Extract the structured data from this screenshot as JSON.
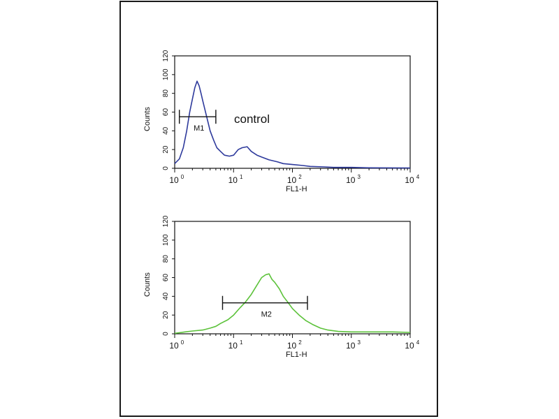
{
  "chart_data": [
    {
      "type": "line",
      "xlabel": "FL1-H",
      "ylabel": "Counts",
      "x_scale": "log",
      "xlim": [
        1,
        10000
      ],
      "ylim": [
        0,
        120
      ],
      "yticks": [
        "0",
        "20",
        "40",
        "60",
        "80",
        "100",
        "120"
      ],
      "xticks": [
        {
          "base": "10",
          "exp": "0"
        },
        {
          "base": "10",
          "exp": "1"
        },
        {
          "base": "10",
          "exp": "2"
        },
        {
          "base": "10",
          "exp": "3"
        },
        {
          "base": "10",
          "exp": "4"
        }
      ],
      "annotation": "control",
      "marker": {
        "label": "M1",
        "x_start": 1.2,
        "x_end": 5.0,
        "y": 55
      },
      "series": [
        {
          "color": "#2e3a9c",
          "points": [
            [
              1.0,
              5
            ],
            [
              1.2,
              10
            ],
            [
              1.4,
              22
            ],
            [
              1.6,
              40
            ],
            [
              1.8,
              60
            ],
            [
              2.0,
              74
            ],
            [
              2.2,
              86
            ],
            [
              2.4,
              93
            ],
            [
              2.6,
              88
            ],
            [
              2.8,
              80
            ],
            [
              3.0,
              72
            ],
            [
              3.4,
              58
            ],
            [
              4.0,
              40
            ],
            [
              4.6,
              30
            ],
            [
              5.2,
              22
            ],
            [
              6.0,
              18
            ],
            [
              7.0,
              14
            ],
            [
              8.5,
              13
            ],
            [
              10,
              14
            ],
            [
              12,
              20
            ],
            [
              14,
              22
            ],
            [
              17,
              23
            ],
            [
              20,
              18
            ],
            [
              25,
              14
            ],
            [
              30,
              12
            ],
            [
              40,
              9
            ],
            [
              55,
              7
            ],
            [
              70,
              5
            ],
            [
              100,
              4
            ],
            [
              150,
              3
            ],
            [
              200,
              2
            ],
            [
              350,
              1.5
            ],
            [
              500,
              1
            ],
            [
              1000,
              1
            ],
            [
              2000,
              0.5
            ],
            [
              10000,
              0.3
            ]
          ]
        }
      ]
    },
    {
      "type": "line",
      "xlabel": "FL1-H",
      "ylabel": "Counts",
      "x_scale": "log",
      "xlim": [
        1,
        10000
      ],
      "ylim": [
        0,
        120
      ],
      "yticks": [
        "0",
        "20",
        "40",
        "60",
        "80",
        "100",
        "120"
      ],
      "xticks": [
        {
          "base": "10",
          "exp": "0"
        },
        {
          "base": "10",
          "exp": "1"
        },
        {
          "base": "10",
          "exp": "2"
        },
        {
          "base": "10",
          "exp": "3"
        },
        {
          "base": "10",
          "exp": "4"
        }
      ],
      "marker": {
        "label": "M2",
        "x_start": 6.5,
        "x_end": 180,
        "y": 33
      },
      "series": [
        {
          "color": "#5cc23a",
          "points": [
            [
              1.0,
              0.5
            ],
            [
              1.5,
              2
            ],
            [
              2.0,
              3
            ],
            [
              3.0,
              4
            ],
            [
              4.0,
              6
            ],
            [
              5.0,
              8
            ],
            [
              6.0,
              11
            ],
            [
              8.0,
              15
            ],
            [
              10,
              20
            ],
            [
              13,
              28
            ],
            [
              16,
              34
            ],
            [
              20,
              42
            ],
            [
              25,
              52
            ],
            [
              30,
              60
            ],
            [
              35,
              63
            ],
            [
              40,
              64
            ],
            [
              45,
              58
            ],
            [
              50,
              55
            ],
            [
              60,
              48
            ],
            [
              70,
              40
            ],
            [
              85,
              33
            ],
            [
              100,
              27
            ],
            [
              130,
              20
            ],
            [
              170,
              14
            ],
            [
              220,
              10
            ],
            [
              300,
              6
            ],
            [
              400,
              4
            ],
            [
              600,
              2.5
            ],
            [
              1000,
              2
            ],
            [
              2000,
              2
            ],
            [
              5000,
              2
            ],
            [
              10000,
              1.5
            ]
          ]
        }
      ]
    }
  ]
}
